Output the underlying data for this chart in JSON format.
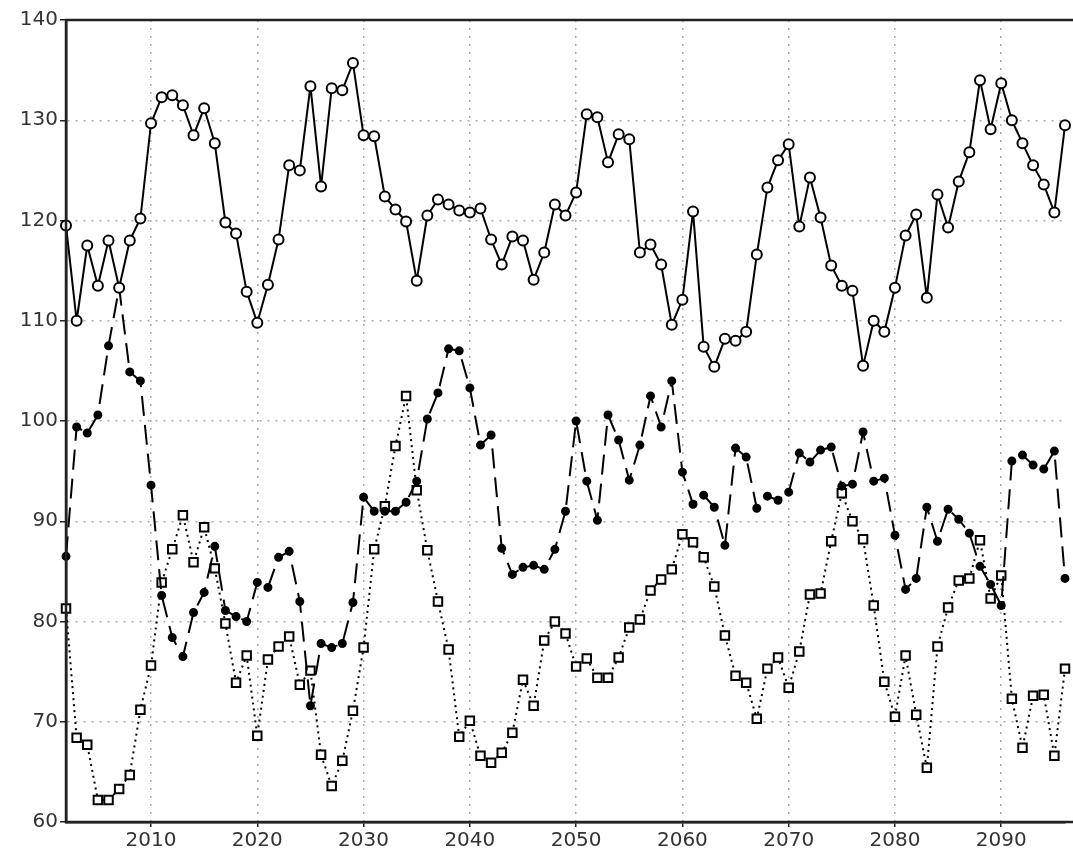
{
  "chart_data": {
    "type": "line",
    "x": [
      2002,
      2003,
      2004,
      2005,
      2006,
      2007,
      2008,
      2009,
      2010,
      2011,
      2012,
      2013,
      2014,
      2015,
      2016,
      2017,
      2018,
      2019,
      2020,
      2021,
      2022,
      2023,
      2024,
      2025,
      2026,
      2027,
      2028,
      2029,
      2030,
      2031,
      2032,
      2033,
      2034,
      2035,
      2036,
      2037,
      2038,
      2039,
      2040,
      2041,
      2042,
      2043,
      2044,
      2045,
      2046,
      2047,
      2048,
      2049,
      2050,
      2051,
      2052,
      2053,
      2054,
      2055,
      2056,
      2057,
      2058,
      2059,
      2060,
      2061,
      2062,
      2063,
      2064,
      2065,
      2066,
      2067,
      2068,
      2069,
      2070,
      2071,
      2072,
      2073,
      2074,
      2075,
      2076,
      2077,
      2078,
      2079,
      2080,
      2081,
      2082,
      2083,
      2084,
      2085,
      2086,
      2087,
      2088,
      2089,
      2090,
      2091,
      2092,
      2093,
      2094,
      2095,
      2096
    ],
    "xlim": [
      2002,
      2096
    ],
    "xticks": [
      2010,
      2020,
      2030,
      2040,
      2050,
      2060,
      2070,
      2080,
      2090
    ],
    "ylim": [
      60,
      140
    ],
    "yticks": [
      60,
      70,
      80,
      90,
      100,
      110,
      120,
      130,
      140
    ],
    "grid": true,
    "legend": false,
    "series": [
      {
        "color": "#000000",
        "marker": "circle",
        "line_style": "solid",
        "values": [
          119.5,
          110,
          117.5,
          113.5,
          118,
          113.3,
          118,
          120.2,
          129.7,
          132.3,
          132.5,
          131.5,
          128.5,
          131.2,
          127.7,
          119.8,
          118.7,
          112.9,
          109.8,
          113.6,
          118.1,
          125.5,
          125,
          133.4,
          123.4,
          133.2,
          133,
          135.7,
          128.5,
          128.4,
          122.4,
          121.1,
          119.9,
          114,
          120.5,
          122.1,
          121.6,
          121,
          120.8,
          121.2,
          118.1,
          115.6,
          118.4,
          118,
          114.1,
          116.8,
          121.6,
          120.5,
          122.8,
          130.6,
          130.3,
          125.8,
          128.6,
          128.1,
          116.8,
          117.6,
          115.6,
          109.6,
          112.1,
          120.9,
          107.4,
          105.4,
          108.2,
          108,
          108.9,
          116.6,
          123.3,
          126,
          127.6,
          119.4,
          124.3,
          120.3,
          115.5,
          113.5,
          113,
          105.5,
          110,
          108.9,
          113.3,
          118.5,
          120.6,
          112.3,
          122.6,
          119.3,
          123.9,
          126.8,
          134,
          129.1,
          133.7,
          130,
          127.7,
          125.5,
          123.6,
          120.8,
          129.5
        ]
      },
      {
        "color": "#000000",
        "marker": "circle-filled",
        "line_style": "dashed",
        "values": [
          86.5,
          99.4,
          98.8,
          100.6,
          107.5,
          113.3,
          104.9,
          104,
          93.6,
          82.6,
          78.4,
          76.5,
          80.9,
          82.9,
          87.5,
          81.1,
          80.5,
          80,
          83.9,
          83.4,
          86.4,
          87,
          82,
          71.6,
          77.8,
          77.4,
          77.8,
          81.9,
          92.4,
          91,
          91,
          91,
          91.9,
          94,
          100.2,
          102.8,
          107.2,
          107,
          103.3,
          97.6,
          98.6,
          87.3,
          84.7,
          85.4,
          85.6,
          85.2,
          87.2,
          91,
          100,
          94,
          90.1,
          100.6,
          98.1,
          94.1,
          97.6,
          102.5,
          99.4,
          104,
          94.9,
          91.7,
          92.6,
          91.4,
          87.6,
          97.3,
          96.4,
          91.3,
          92.5,
          92.1,
          92.9,
          96.8,
          95.9,
          97.1,
          97.4,
          93.5,
          93.7,
          98.9,
          94,
          94.3,
          88.6,
          83.2,
          84.3,
          91.4,
          88,
          91.2,
          90.2,
          88.8,
          85.5,
          83.7,
          81.6,
          96,
          96.6,
          95.6,
          95.2,
          97,
          84.3
        ]
      },
      {
        "color": "#000000",
        "marker": "square",
        "line_style": "dotted",
        "values": [
          81.3,
          68.4,
          67.7,
          62.2,
          62.2,
          63.3,
          64.7,
          71.2,
          75.6,
          83.9,
          87.2,
          90.6,
          85.9,
          89.4,
          85.3,
          79.8,
          73.9,
          76.6,
          68.6,
          76.2,
          77.5,
          78.5,
          73.7,
          75.1,
          66.7,
          63.6,
          66.1,
          71.1,
          77.4,
          87.2,
          91.5,
          97.5,
          102.5,
          93.1,
          87.1,
          82,
          77.2,
          68.5,
          70.1,
          66.6,
          65.9,
          66.9,
          68.9,
          74.2,
          71.6,
          78.1,
          80,
          78.8,
          75.5,
          76.3,
          74.4,
          74.4,
          76.4,
          79.4,
          80.2,
          83.1,
          84.2,
          85.2,
          88.7,
          87.9,
          86.4,
          83.5,
          78.6,
          74.6,
          73.9,
          70.3,
          75.3,
          76.4,
          73.4,
          77,
          82.7,
          82.8,
          88,
          92.8,
          90,
          88.2,
          81.6,
          74,
          70.5,
          76.6,
          70.7,
          65.4,
          77.5,
          81.4,
          84.1,
          84.3,
          88.1,
          82.3,
          84.6,
          72.3,
          67.4,
          72.6,
          72.7,
          66.6,
          75.3
        ]
      }
    ]
  }
}
